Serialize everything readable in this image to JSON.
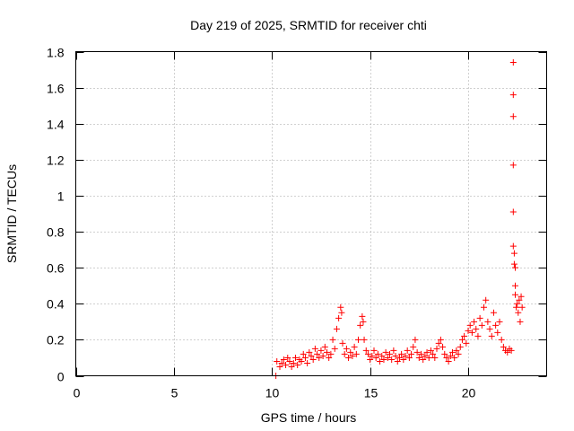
{
  "chart_data": {
    "type": "scatter",
    "title": "Day 219 of 2025, SRMTID for receiver chti",
    "xlabel": "GPS time / hours",
    "ylabel": "SRMTID / TECUs",
    "xlim": [
      0,
      24
    ],
    "ylim": [
      0,
      1.8
    ],
    "xticks": [
      0,
      5,
      10,
      15,
      20
    ],
    "xtick_labels": [
      "0",
      "5",
      "10",
      "15",
      "20"
    ],
    "yticks": [
      0,
      0.2,
      0.4,
      0.6,
      0.8,
      1.0,
      1.2,
      1.4,
      1.6,
      1.8
    ],
    "ytick_labels": [
      "0",
      "0.2",
      "0.4",
      "0.6",
      "0.8",
      "1",
      "1.2",
      "1.4",
      "1.6",
      "1.8"
    ],
    "grid": true,
    "marker": "+",
    "color": "#ff0000",
    "series": [
      {
        "name": "SRMTID",
        "x": [
          10.2,
          10.25,
          10.4,
          10.5,
          10.6,
          10.7,
          10.8,
          10.9,
          11.0,
          11.1,
          11.2,
          11.3,
          11.4,
          11.5,
          11.6,
          11.7,
          11.8,
          11.9,
          12.0,
          12.1,
          12.2,
          12.3,
          12.4,
          12.5,
          12.6,
          12.7,
          12.8,
          12.9,
          13.0,
          13.1,
          13.2,
          13.3,
          13.4,
          13.5,
          13.55,
          13.6,
          13.7,
          13.8,
          13.9,
          14.0,
          14.1,
          14.2,
          14.3,
          14.4,
          14.5,
          14.6,
          14.65,
          14.7,
          14.8,
          14.9,
          15.0,
          15.1,
          15.2,
          15.3,
          15.4,
          15.5,
          15.6,
          15.7,
          15.8,
          15.9,
          16.0,
          16.1,
          16.2,
          16.3,
          16.4,
          16.5,
          16.6,
          16.7,
          16.8,
          16.9,
          17.0,
          17.1,
          17.2,
          17.3,
          17.4,
          17.5,
          17.6,
          17.7,
          17.8,
          17.9,
          18.0,
          18.1,
          18.2,
          18.3,
          18.4,
          18.5,
          18.6,
          18.7,
          18.8,
          18.9,
          19.0,
          19.1,
          19.2,
          19.3,
          19.4,
          19.5,
          19.6,
          19.7,
          19.8,
          19.9,
          20.0,
          20.1,
          20.2,
          20.3,
          20.4,
          20.5,
          20.6,
          20.7,
          20.8,
          20.9,
          21.0,
          21.1,
          21.2,
          21.3,
          21.4,
          21.5,
          21.6,
          21.7,
          21.8,
          21.9,
          22.0,
          22.1,
          22.2,
          22.3,
          22.3,
          22.3,
          22.3,
          22.3,
          22.3,
          22.35,
          22.35,
          22.4,
          22.4,
          22.4,
          22.45,
          22.5,
          22.55,
          22.6,
          22.65,
          22.7,
          22.75
        ],
        "y": [
          0.0,
          0.08,
          0.05,
          0.07,
          0.09,
          0.06,
          0.1,
          0.08,
          0.05,
          0.07,
          0.1,
          0.06,
          0.09,
          0.08,
          0.12,
          0.1,
          0.07,
          0.13,
          0.11,
          0.09,
          0.15,
          0.12,
          0.1,
          0.14,
          0.11,
          0.16,
          0.13,
          0.1,
          0.12,
          0.2,
          0.15,
          0.26,
          0.32,
          0.38,
          0.35,
          0.18,
          0.12,
          0.15,
          0.1,
          0.13,
          0.11,
          0.16,
          0.12,
          0.2,
          0.28,
          0.33,
          0.3,
          0.2,
          0.14,
          0.12,
          0.09,
          0.11,
          0.14,
          0.1,
          0.12,
          0.08,
          0.11,
          0.09,
          0.13,
          0.1,
          0.12,
          0.09,
          0.14,
          0.11,
          0.08,
          0.1,
          0.12,
          0.09,
          0.11,
          0.14,
          0.1,
          0.12,
          0.16,
          0.2,
          0.13,
          0.1,
          0.12,
          0.09,
          0.11,
          0.13,
          0.1,
          0.14,
          0.12,
          0.1,
          0.15,
          0.18,
          0.2,
          0.16,
          0.12,
          0.1,
          0.08,
          0.11,
          0.13,
          0.1,
          0.14,
          0.12,
          0.16,
          0.2,
          0.22,
          0.18,
          0.25,
          0.28,
          0.24,
          0.3,
          0.26,
          0.22,
          0.32,
          0.28,
          0.38,
          0.42,
          0.3,
          0.26,
          0.22,
          0.35,
          0.28,
          0.24,
          0.3,
          0.2,
          0.16,
          0.14,
          0.13,
          0.15,
          0.14,
          1.74,
          1.56,
          1.44,
          1.17,
          0.91,
          0.72,
          0.68,
          0.62,
          0.6,
          0.5,
          0.45,
          0.38,
          0.4,
          0.35,
          0.42,
          0.3,
          0.44,
          0.38
        ]
      }
    ]
  }
}
